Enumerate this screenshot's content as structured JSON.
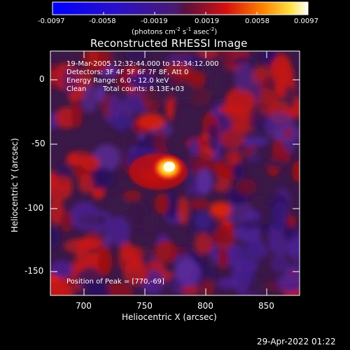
{
  "colorbar": {
    "ticks": [
      "-0.0097",
      "-0.0058",
      "-0.0019",
      "0.0019",
      "0.0058",
      "0.0097"
    ],
    "unit_main": "(photons cm",
    "unit_exp1": "-2",
    "unit_mid": " s",
    "unit_exp2": "-1",
    "unit_end": " asec",
    "unit_exp3": "-2",
    "unit_close": ")"
  },
  "title": "Reconstructed RHESSI Image",
  "info": {
    "time": "19-Mar-2005 12:32:44.000 to 12:34:12.000",
    "detectors": "Detectors: 3F 4F 5F 6F 7F 8F, Att 0",
    "energy": "Energy Range: 6.0 - 12.0 keV",
    "method": "Clean",
    "counts": "Total counts: 8.13E+03",
    "peak": "Position of Peak = [770,-69]"
  },
  "axes": {
    "xlabel": "Heliocentric X (arcsec)",
    "ylabel": "Heliocentric Y (arcsec)",
    "xticks": [
      "700",
      "750",
      "800",
      "850"
    ],
    "yticks": [
      "0",
      "-50",
      "-100",
      "-150"
    ]
  },
  "footer_timestamp": "29-Apr-2022 01:22",
  "colors": {
    "background": "#000000",
    "foreground": "#ffffff",
    "peak": "#ffffcc"
  }
}
